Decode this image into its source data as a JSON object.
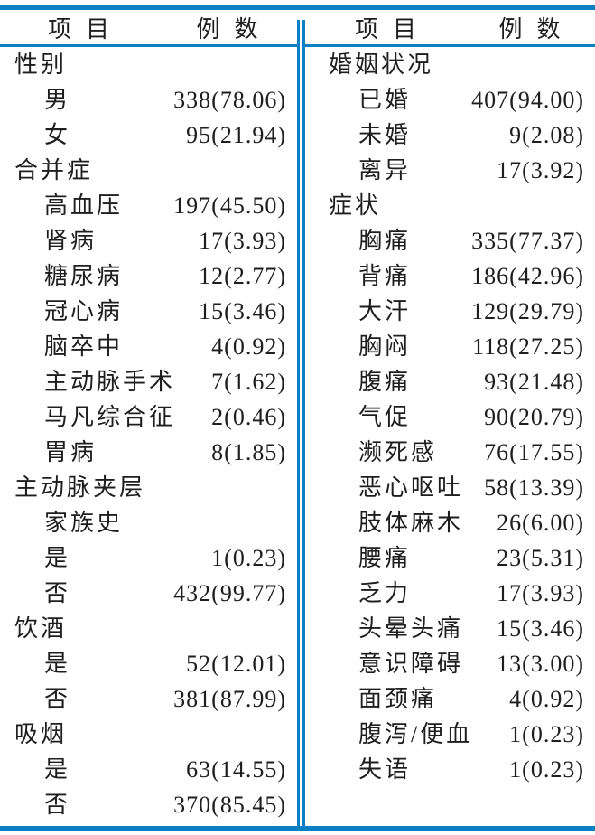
{
  "colors": {
    "rule_blue": "#0b80c2",
    "text": "#1e1e1e",
    "background": "#ffffff"
  },
  "table": {
    "columns": [
      {
        "header": {
          "item": "项目",
          "cases": "例数"
        },
        "rows": [
          {
            "type": "category",
            "label": "性别",
            "value": ""
          },
          {
            "type": "item",
            "label": "男",
            "value": "338(78.06)"
          },
          {
            "type": "item",
            "label": "女",
            "value": "95(21.94)"
          },
          {
            "type": "category",
            "label": "合并症",
            "value": ""
          },
          {
            "type": "item",
            "label": "高血压",
            "value": "197(45.50)"
          },
          {
            "type": "item",
            "label": "肾病",
            "value": "17(3.93)"
          },
          {
            "type": "item",
            "label": "糖尿病",
            "value": "12(2.77)"
          },
          {
            "type": "item",
            "label": "冠心病",
            "value": "15(3.46)"
          },
          {
            "type": "item",
            "label": "脑卒中",
            "value": "4(0.92)"
          },
          {
            "type": "item",
            "label": "主动脉手术",
            "value": "7(1.62)"
          },
          {
            "type": "item",
            "label": "马凡综合征",
            "value": "2(0.46)"
          },
          {
            "type": "item",
            "label": "胃病",
            "value": "8(1.85)"
          },
          {
            "type": "category",
            "label": "主动脉夹层家族史",
            "value": ""
          },
          {
            "type": "item",
            "label": "是",
            "value": "1(0.23)"
          },
          {
            "type": "item",
            "label": "否",
            "value": "432(99.77)"
          },
          {
            "type": "category",
            "label": "饮酒",
            "value": ""
          },
          {
            "type": "item",
            "label": "是",
            "value": "52(12.01)"
          },
          {
            "type": "item",
            "label": "否",
            "value": "381(87.99)"
          },
          {
            "type": "category",
            "label": "吸烟",
            "value": ""
          },
          {
            "type": "item",
            "label": "是",
            "value": "63(14.55)"
          },
          {
            "type": "item",
            "label": "否",
            "value": "370(85.45)"
          }
        ]
      },
      {
        "header": {
          "item": "项目",
          "cases": "例数"
        },
        "rows": [
          {
            "type": "category",
            "label": "婚姻状况",
            "value": ""
          },
          {
            "type": "item",
            "label": "已婚",
            "value": "407(94.00)"
          },
          {
            "type": "item",
            "label": "未婚",
            "value": "9(2.08)"
          },
          {
            "type": "item",
            "label": "离异",
            "value": "17(3.92)"
          },
          {
            "type": "category",
            "label": "症状",
            "value": ""
          },
          {
            "type": "item",
            "label": "胸痛",
            "value": "335(77.37)"
          },
          {
            "type": "item",
            "label": "背痛",
            "value": "186(42.96)"
          },
          {
            "type": "item",
            "label": "大汗",
            "value": "129(29.79)"
          },
          {
            "type": "item",
            "label": "胸闷",
            "value": "118(27.25)"
          },
          {
            "type": "item",
            "label": "腹痛",
            "value": "93(21.48)"
          },
          {
            "type": "item",
            "label": "气促",
            "value": "90(20.79)"
          },
          {
            "type": "item",
            "label": "濒死感",
            "value": "76(17.55)"
          },
          {
            "type": "item",
            "label": "恶心呕吐",
            "value": "58(13.39)"
          },
          {
            "type": "item",
            "label": "肢体麻木",
            "value": "26(6.00)"
          },
          {
            "type": "item",
            "label": "腰痛",
            "value": "23(5.31)"
          },
          {
            "type": "item",
            "label": "乏力",
            "value": "17(3.93)"
          },
          {
            "type": "item",
            "label": "头晕头痛",
            "value": "15(3.46)"
          },
          {
            "type": "item",
            "label": "意识障碍",
            "value": "13(3.00)"
          },
          {
            "type": "item",
            "label": "面颈痛",
            "value": "4(0.92)"
          },
          {
            "type": "item",
            "label": "腹泻/便血",
            "value": "1(0.23)"
          },
          {
            "type": "item",
            "label": "失语",
            "value": "1(0.23)"
          }
        ]
      }
    ]
  }
}
